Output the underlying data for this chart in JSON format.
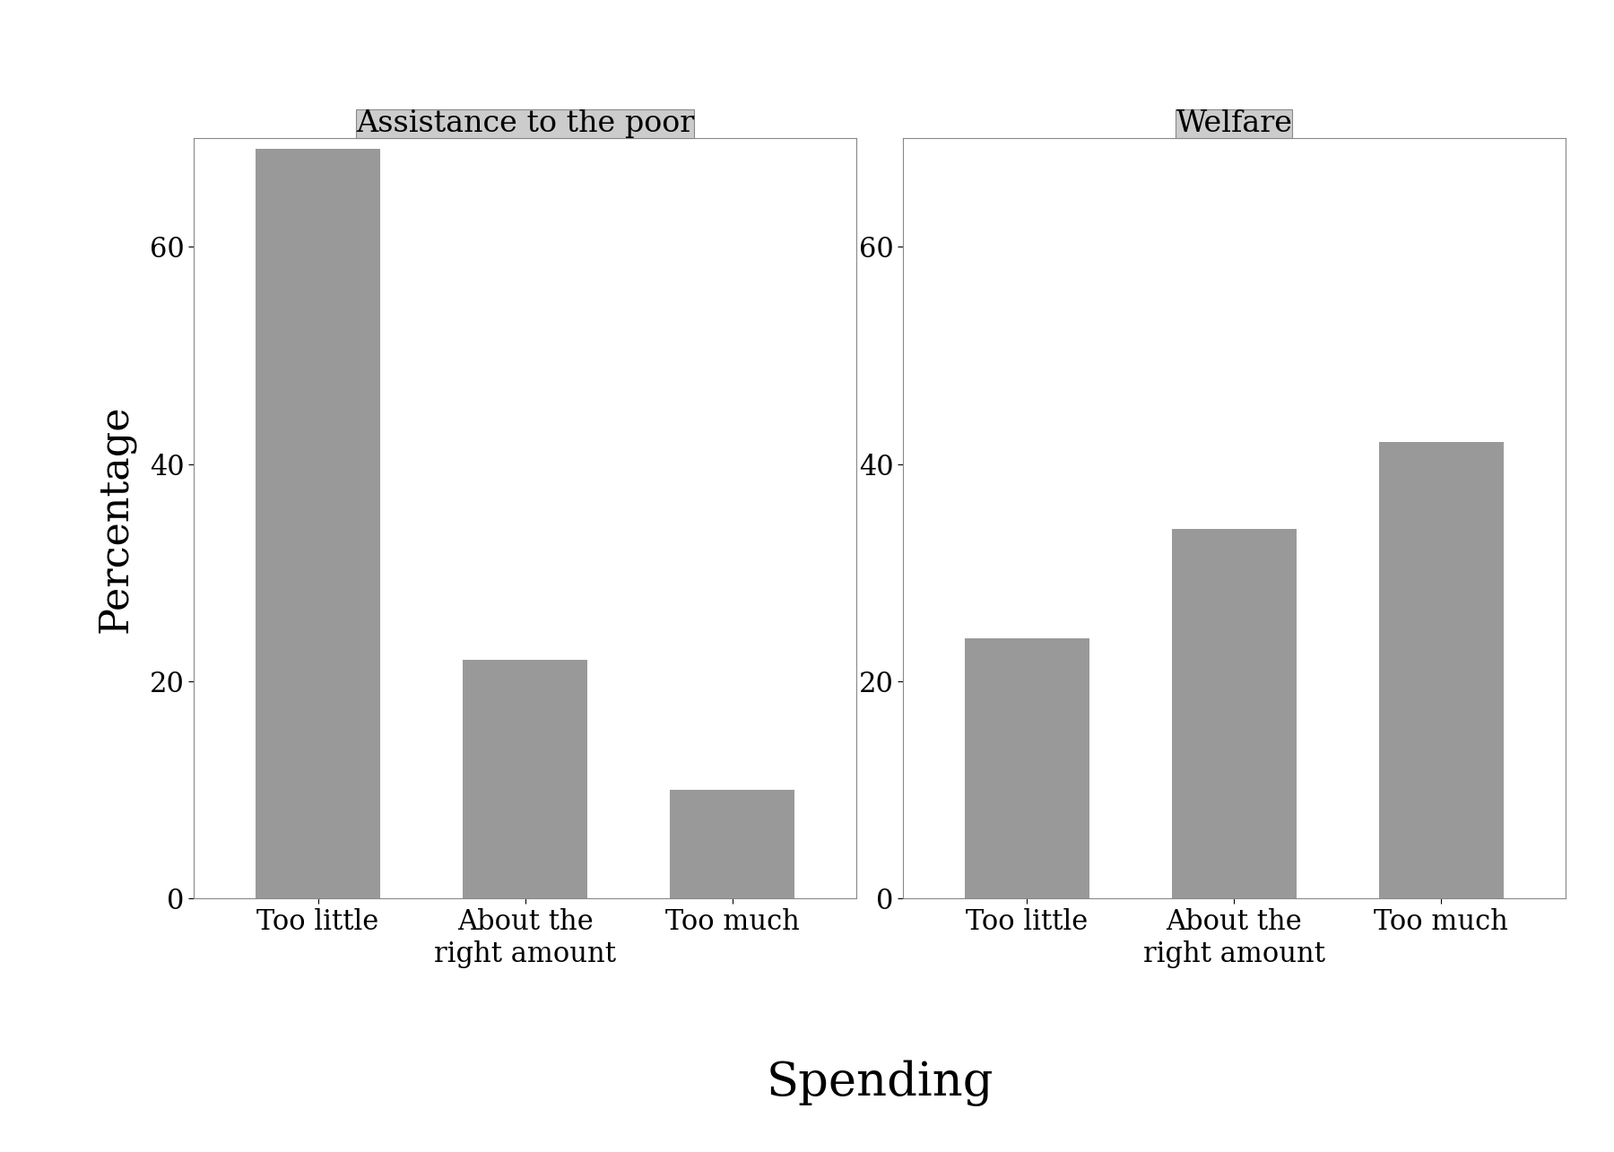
{
  "panels": [
    {
      "title": "Assistance to the poor",
      "categories": [
        "Too little",
        "About the\nright amount",
        "Too much"
      ],
      "values": [
        69,
        22,
        10
      ]
    },
    {
      "title": "Welfare",
      "categories": [
        "Too little",
        "About the\nright amount",
        "Too much"
      ],
      "values": [
        24,
        34,
        42
      ]
    }
  ],
  "xlabel": "Spending",
  "ylabel": "Percentage",
  "ylim": [
    0,
    70
  ],
  "yticks": [
    0,
    20,
    40,
    60
  ],
  "bar_color": "#999999",
  "background_color": "#ffffff",
  "panel_header_color": "#cccccc",
  "bar_width": 0.6,
  "axis_label_fontsize": 32,
  "tick_fontsize": 22,
  "panel_title_fontsize": 24,
  "xlabel_fontsize": 38
}
